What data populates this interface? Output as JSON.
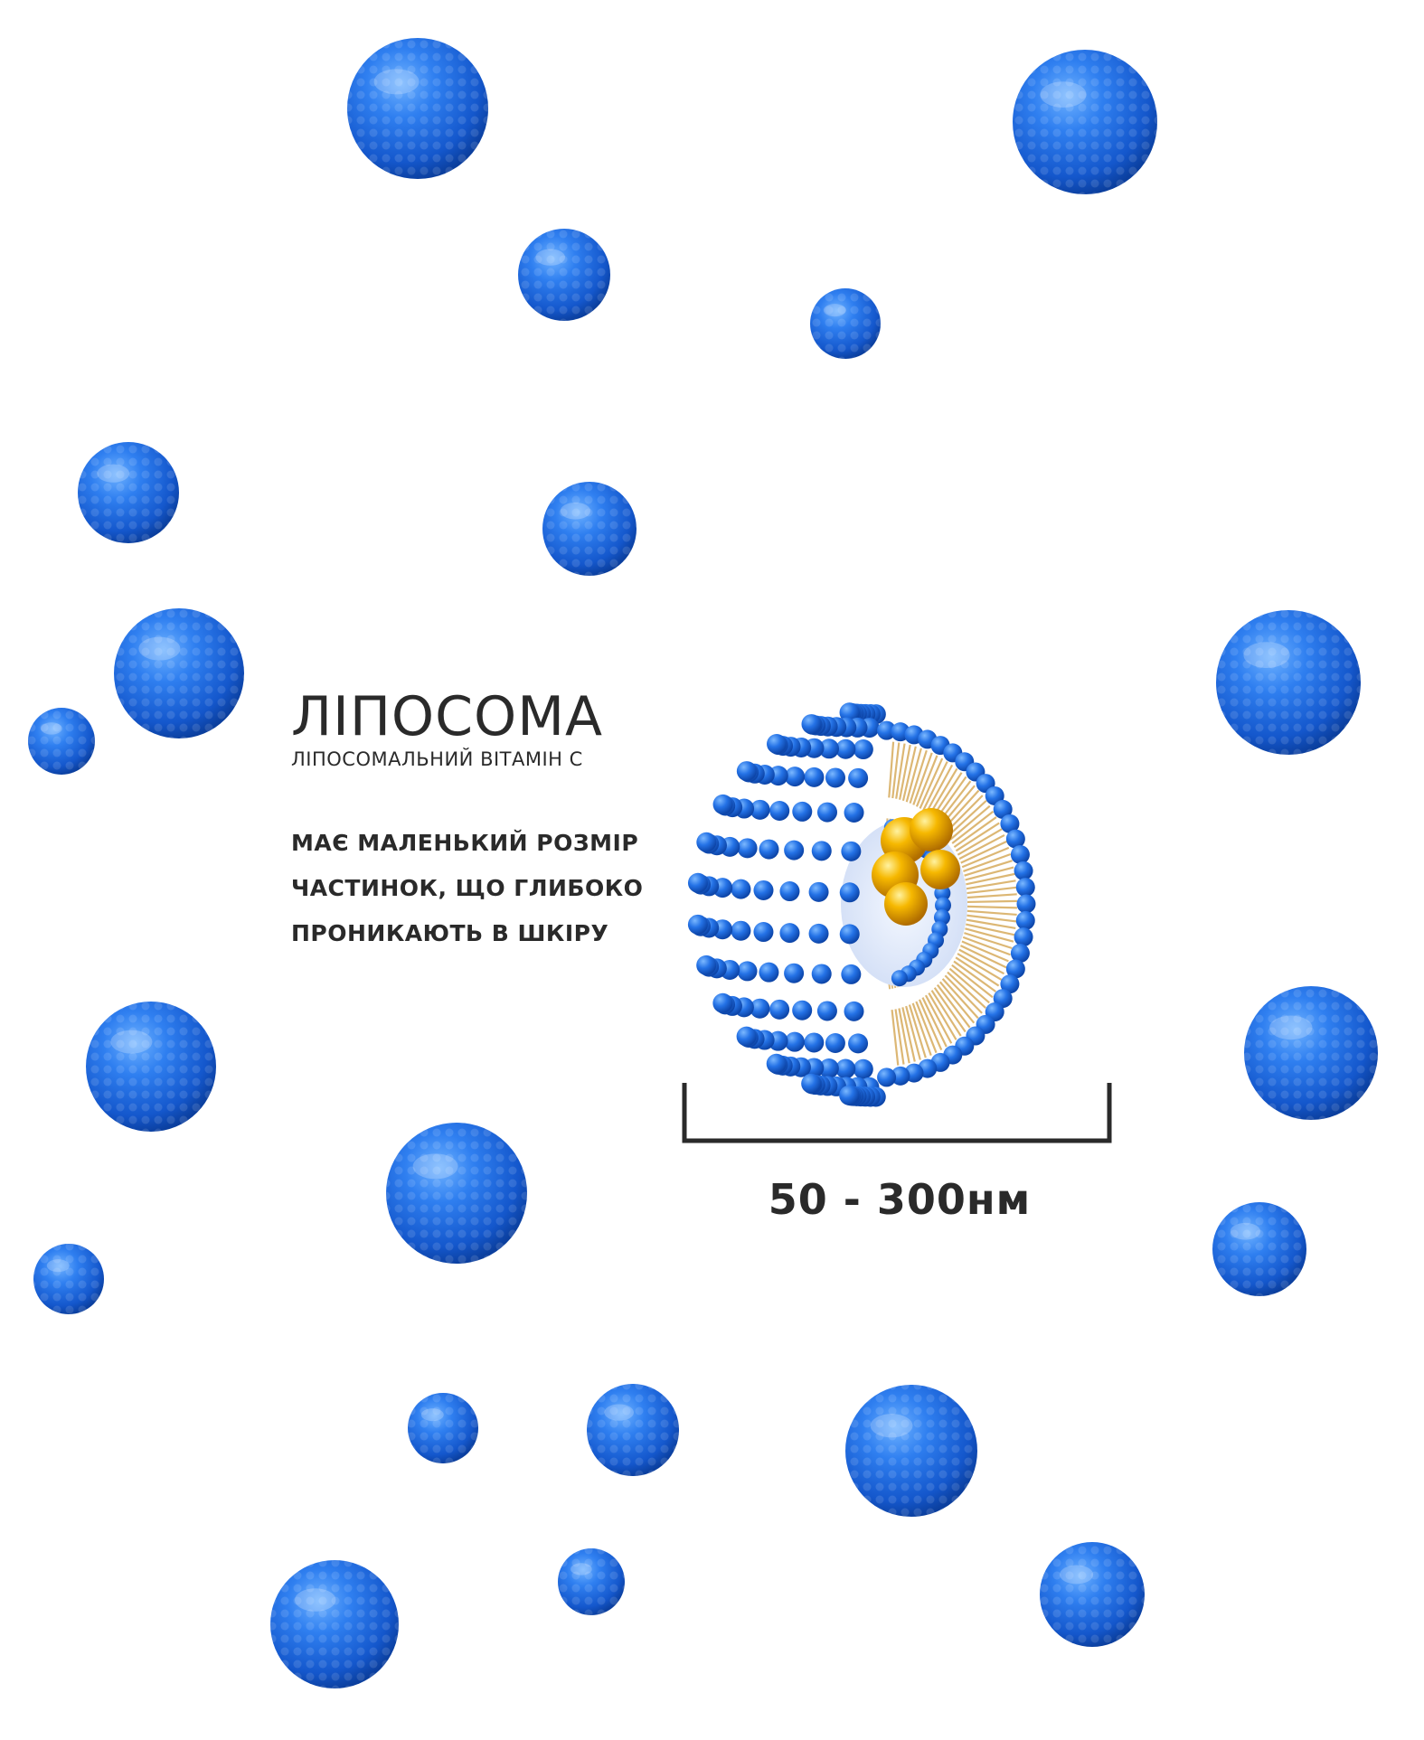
{
  "heading": {
    "title": "ЛІПОСОМА",
    "subtitle": "ЛІПОСОМАЛЬНИЙ ВІТАМІН С"
  },
  "description": {
    "lines": [
      "МАЄ МАЛЕНЬКИЙ РОЗМІР",
      "ЧАСТИНОК, ЩО ГЛИБОКО",
      "ПРОНИКАЮТЬ В ШКІРУ"
    ]
  },
  "scale": {
    "label": "50 - 300нм"
  },
  "colors": {
    "sphere": "#1e6fe0",
    "sphere_dark": "#0b3f9e",
    "core": "#f2a900",
    "lipid_tail": "#d9b066",
    "text": "#2a2a2a"
  }
}
